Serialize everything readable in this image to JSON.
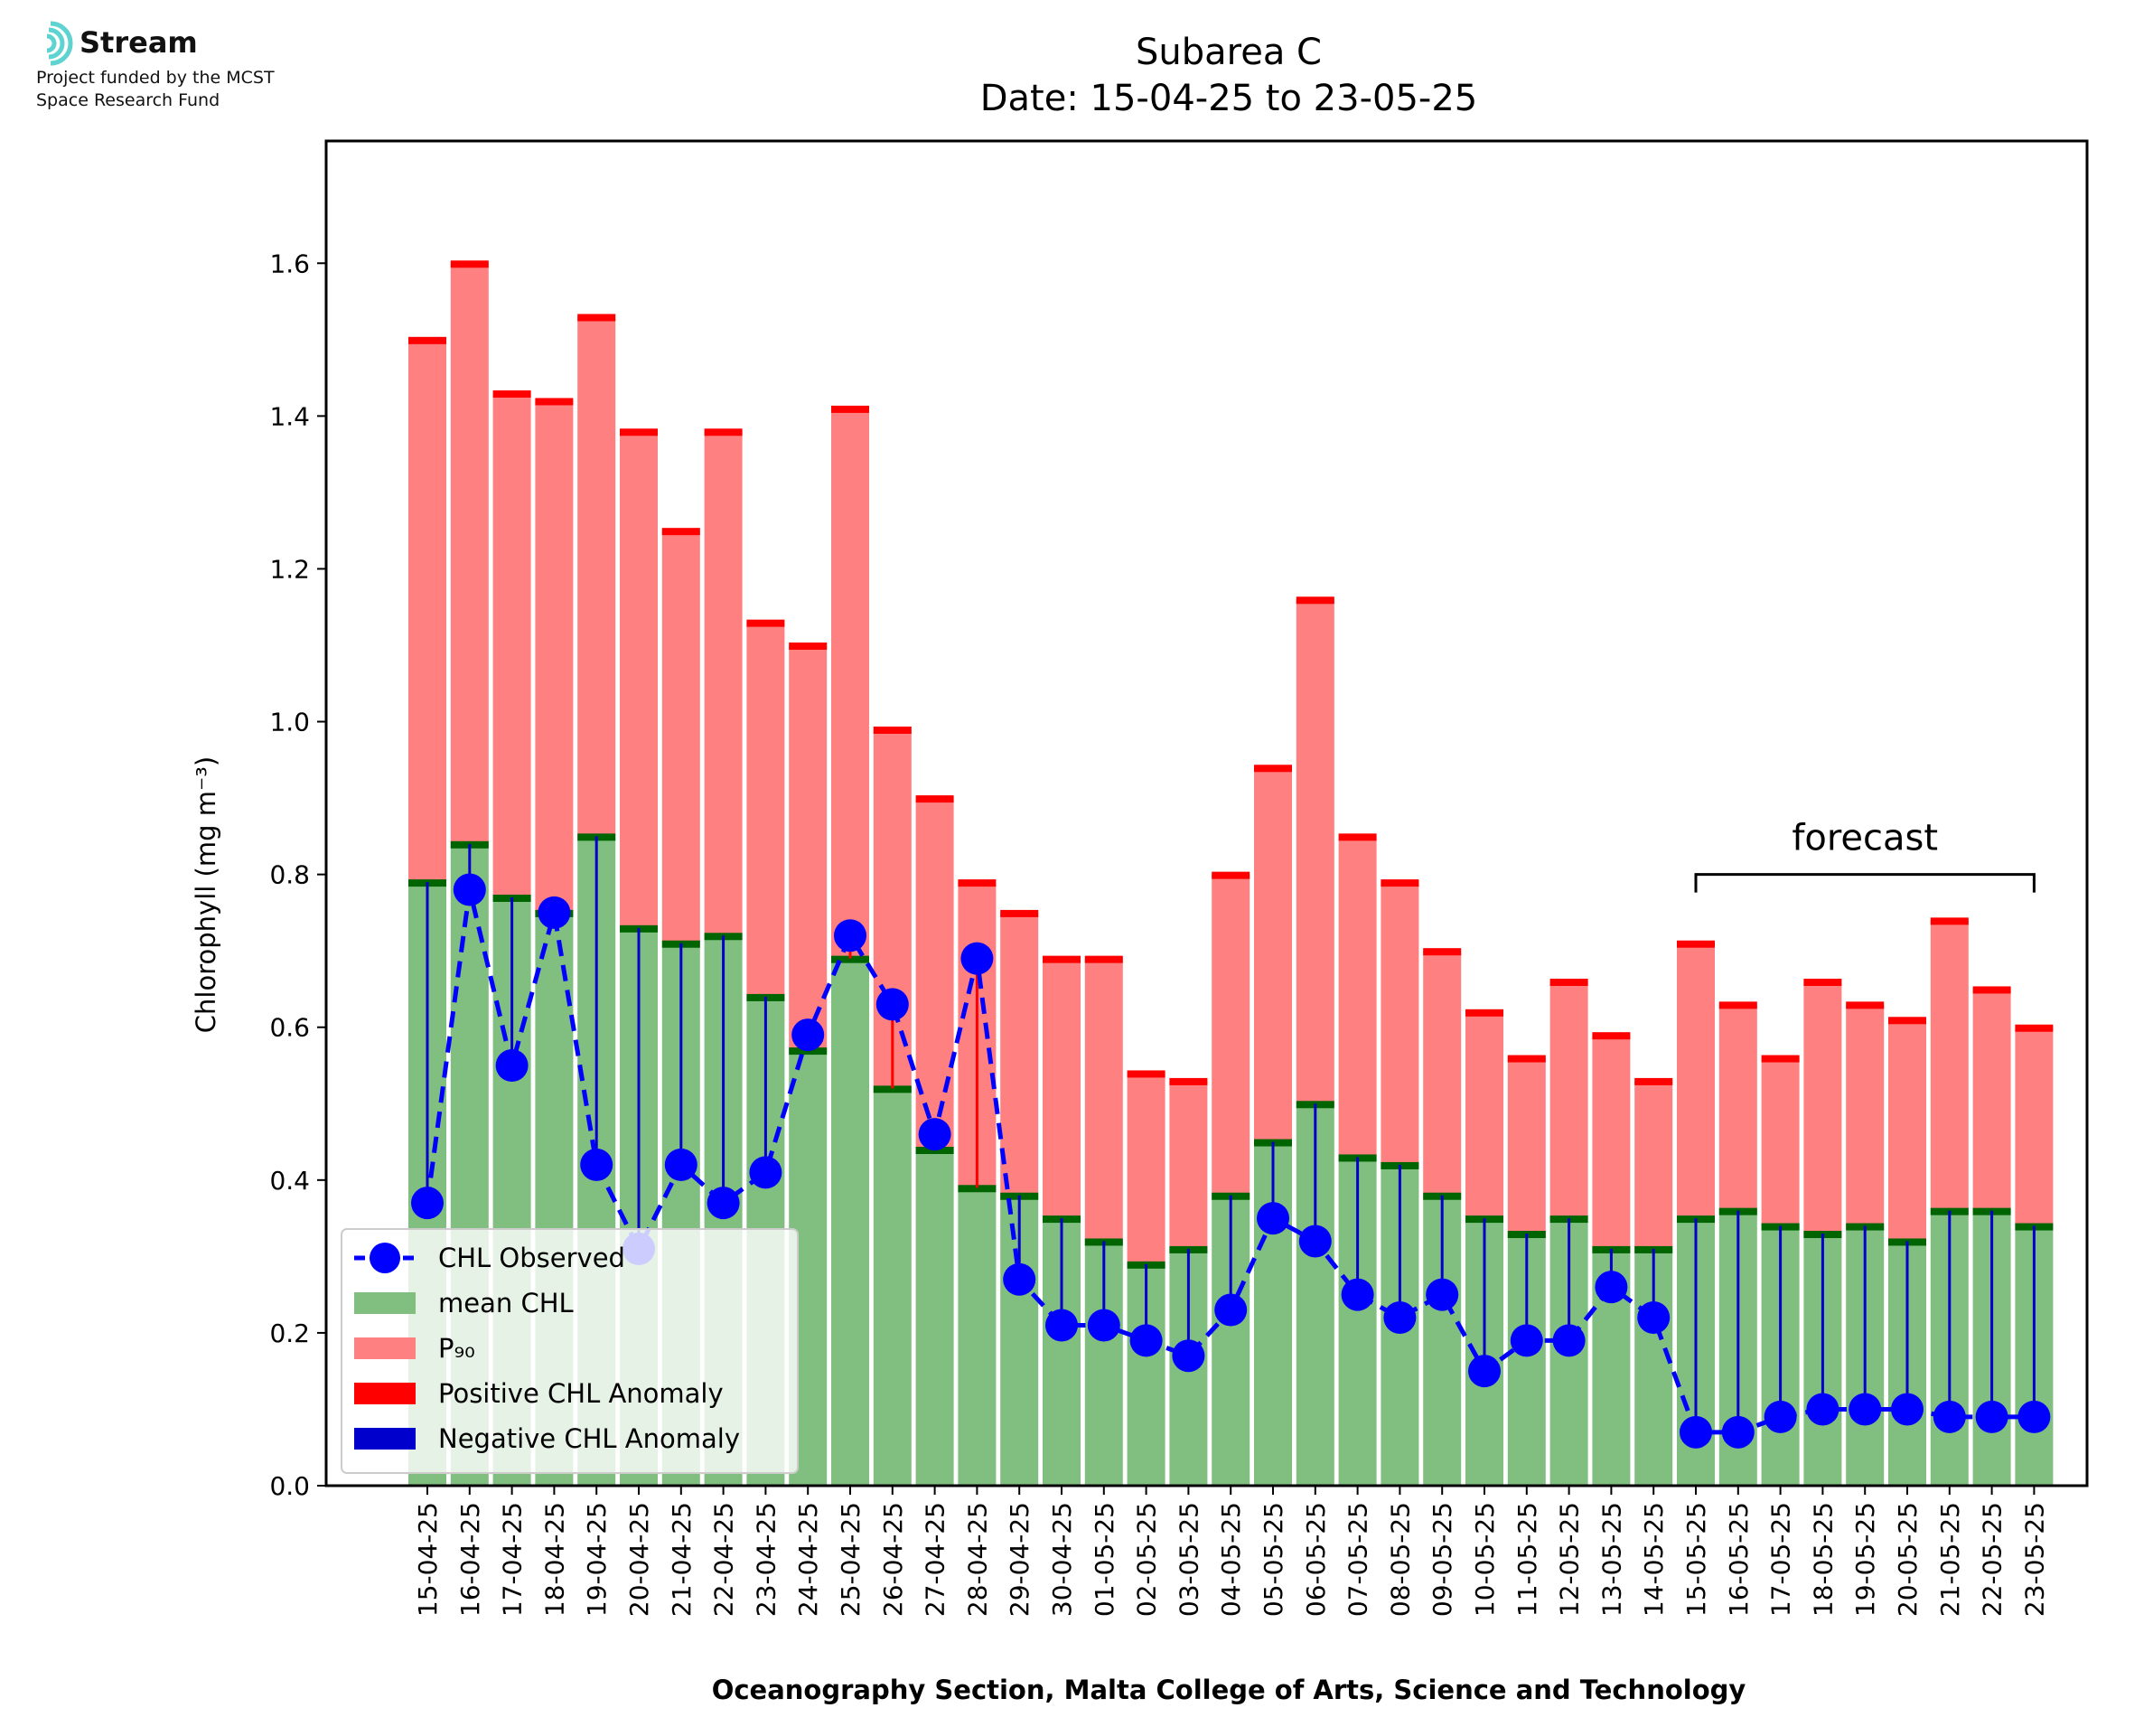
{
  "logo": {
    "name": "Stream",
    "line1": "Project funded by the MCST",
    "line2": "Space Research Fund",
    "color": "#5fd3d0"
  },
  "colors": {
    "mean_chl": "#80bf80",
    "p90": "#ff8080",
    "mean_cap": "#006400",
    "p90_cap": "#ff0000",
    "positive_anomaly": "#ff0000",
    "negative_anomaly": "#0000cc",
    "observed": "#0000ff"
  },
  "chart_data": {
    "type": "bar",
    "title": "Subarea C",
    "subtitle": "Date: 15-04-25 to 23-05-25",
    "xlabel": "Oceanography Section, Malta College of Arts, Science and Technology",
    "ylabel": "Chlorophyll (mg m⁻³)",
    "ylim": [
      0,
      1.76
    ],
    "yticks": [
      0.0,
      0.2,
      0.4,
      0.6,
      0.8,
      1.0,
      1.2,
      1.4,
      1.6
    ],
    "ytick_labels": [
      "0.0",
      "0.2",
      "0.4",
      "0.6",
      "0.8",
      "1.0",
      "1.2",
      "1.4",
      "1.6"
    ],
    "grid": false,
    "legend_position": "lower-left",
    "categories": [
      "15-04-25",
      "16-04-25",
      "17-04-25",
      "18-04-25",
      "19-04-25",
      "20-04-25",
      "21-04-25",
      "22-04-25",
      "23-04-25",
      "24-04-25",
      "25-04-25",
      "26-04-25",
      "27-04-25",
      "28-04-25",
      "29-04-25",
      "30-04-25",
      "01-05-25",
      "02-05-25",
      "03-05-25",
      "04-05-25",
      "05-05-25",
      "06-05-25",
      "07-05-25",
      "08-05-25",
      "09-05-25",
      "10-05-25",
      "11-05-25",
      "12-05-25",
      "13-05-25",
      "14-05-25",
      "15-05-25",
      "16-05-25",
      "17-05-25",
      "18-05-25",
      "19-05-25",
      "20-05-25",
      "21-05-25",
      "22-05-25",
      "23-05-25"
    ],
    "series": [
      {
        "name": "CHL Observed",
        "values": [
          0.37,
          0.78,
          0.55,
          0.75,
          0.42,
          0.31,
          0.42,
          0.37,
          0.41,
          0.59,
          0.72,
          0.63,
          0.46,
          0.69,
          0.27,
          0.21,
          0.21,
          0.19,
          0.17,
          0.23,
          0.35,
          0.32,
          0.25,
          0.22,
          0.25,
          0.15,
          0.19,
          0.19,
          0.26,
          0.22,
          0.07,
          0.07,
          0.09,
          0.1,
          0.1,
          0.1,
          0.09,
          0.09,
          0.09
        ]
      },
      {
        "name": "mean CHL",
        "values": [
          0.79,
          0.84,
          0.77,
          0.75,
          0.85,
          0.73,
          0.71,
          0.72,
          0.64,
          0.57,
          0.69,
          0.52,
          0.44,
          0.39,
          0.38,
          0.35,
          0.32,
          0.29,
          0.31,
          0.38,
          0.45,
          0.5,
          0.43,
          0.42,
          0.38,
          0.35,
          0.33,
          0.35,
          0.31,
          0.31,
          0.35,
          0.36,
          0.34,
          0.33,
          0.34,
          0.32,
          0.36,
          0.36,
          0.34
        ]
      },
      {
        "name": "P₉₀",
        "values": [
          1.5,
          1.6,
          1.43,
          1.42,
          1.53,
          1.38,
          1.25,
          1.38,
          1.13,
          1.1,
          1.41,
          0.99,
          0.9,
          0.79,
          0.75,
          0.69,
          0.69,
          0.54,
          0.53,
          0.8,
          0.94,
          1.16,
          0.85,
          0.79,
          0.7,
          0.62,
          0.56,
          0.66,
          0.59,
          0.53,
          0.71,
          0.63,
          0.56,
          0.66,
          0.63,
          0.61,
          0.74,
          0.65,
          0.6
        ]
      }
    ],
    "legend": [
      "CHL Observed",
      "mean CHL",
      "P₉₀",
      "Positive CHL Anomaly",
      "Negative CHL Anomaly"
    ],
    "annotation": {
      "text": "forecast",
      "from": "15-05-25",
      "to": "23-05-25"
    }
  }
}
